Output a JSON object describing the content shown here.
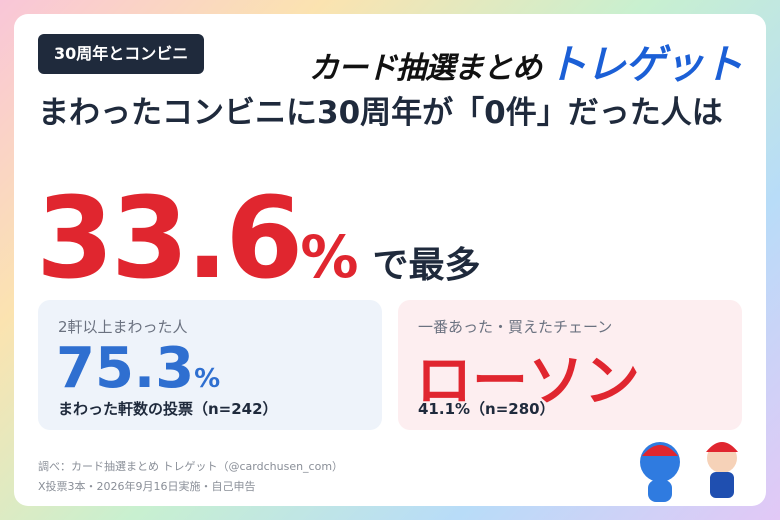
{
  "badge": "30周年とコンビニ",
  "logo": {
    "main": "カード抽選まとめ",
    "brand": "トレゲット"
  },
  "headline": "まわったコンビニに30周年が「0件」だった人は",
  "hero": {
    "value": "33.6",
    "unit": "%",
    "suffix": "で最多"
  },
  "cards": [
    {
      "label": "2軒以上まわった人",
      "value": "75.3",
      "unit": "%",
      "note": "まわった軒数の投票（n=242）"
    },
    {
      "label": "一番あった・買えたチェーン",
      "value": "ローソン",
      "note": "41.1%（n=280）"
    }
  ],
  "footer": [
    "調べ：カード抽選まとめ トレゲット（@cardchusen_com）",
    "X投票3本・2026年9月16日実施・自己申告"
  ]
}
